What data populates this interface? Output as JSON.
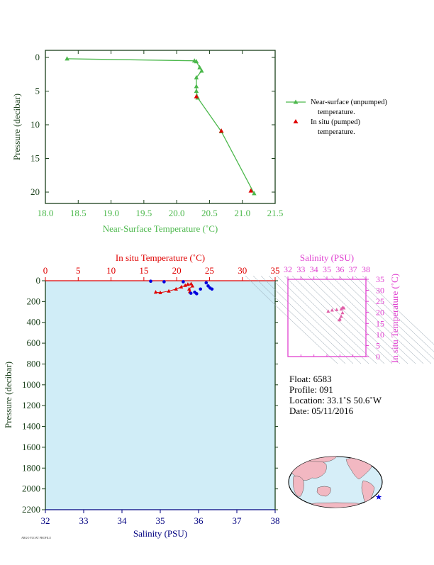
{
  "chart_data": [
    {
      "type": "line",
      "xlabel": "Near-Surface Temperature (˚C)",
      "ylabel": "Pressure (decibar)",
      "xlim": [
        18.0,
        21.5
      ],
      "ylim": [
        0,
        22
      ],
      "x_ticks": [
        "18.0",
        "18.5",
        "19.0",
        "19.5",
        "20.0",
        "20.5",
        "21.0",
        "21.5"
      ],
      "y_ticks": [
        "0",
        "5",
        "10",
        "15",
        "20"
      ],
      "legend_position": "right",
      "series": [
        {
          "name": "Near-surface (unpumped) temperature.",
          "color": "#4cb84c",
          "marker": "triangle",
          "points": [
            [
              18.33,
              0.2
            ],
            [
              20.27,
              0.5
            ],
            [
              20.3,
              0.6
            ],
            [
              20.35,
              1.5
            ],
            [
              20.38,
              2.0
            ],
            [
              20.3,
              3.0
            ],
            [
              20.3,
              4.3
            ],
            [
              20.3,
              5.0
            ],
            [
              20.32,
              6.0
            ],
            [
              20.68,
              11.0
            ],
            [
              21.18,
              20.2
            ]
          ]
        },
        {
          "name": "In situ (pumped) temperature.",
          "color": "#e00000",
          "marker": "triangle",
          "points": [
            [
              20.3,
              5.8
            ],
            [
              20.68,
              10.9
            ],
            [
              21.13,
              19.8
            ]
          ]
        }
      ]
    },
    {
      "type": "scatter",
      "title_top": "In situ Temperature (˚C)",
      "xlabel": "Salinity (PSU)",
      "ylabel": "Pressure (decibar)",
      "temp_lim": [
        0,
        35
      ],
      "temp_ticks": [
        "0",
        "5",
        "10",
        "15",
        "20",
        "25",
        "30",
        "35"
      ],
      "sal_lim": [
        32,
        38
      ],
      "sal_ticks": [
        "32",
        "33",
        "34",
        "35",
        "36",
        "37",
        "38"
      ],
      "ylim": [
        0,
        2200
      ],
      "y_ticks": [
        "0",
        "200",
        "400",
        "600",
        "800",
        "1000",
        "1200",
        "1400",
        "1600",
        "1800",
        "2000",
        "2200"
      ],
      "temperature_series": {
        "color": "#e00000",
        "points": [
          [
            16.8,
            110
          ],
          [
            17.5,
            115
          ],
          [
            18.8,
            100
          ],
          [
            19.9,
            80
          ],
          [
            20.7,
            60
          ],
          [
            21.3,
            45
          ],
          [
            21.7,
            35
          ],
          [
            22.2,
            30
          ],
          [
            22.4,
            50
          ],
          [
            21.9,
            80
          ],
          [
            22.0,
            105
          ]
        ]
      },
      "salinity_series": {
        "color": "#0000dd",
        "points": [
          [
            34.75,
            5
          ],
          [
            35.1,
            10
          ],
          [
            35.6,
            10
          ],
          [
            36.2,
            20
          ],
          [
            36.25,
            50
          ],
          [
            36.3,
            70
          ],
          [
            36.35,
            80
          ],
          [
            36.05,
            80
          ],
          [
            35.9,
            110
          ],
          [
            35.8,
            120
          ],
          [
            35.95,
            125
          ]
        ]
      }
    },
    {
      "type": "scatter",
      "title": "Salinity (PSU)",
      "xlabel": "Salinity (PSU)",
      "ylabel": "In situ Temperature (˚C)",
      "xlim": [
        32,
        38
      ],
      "x_ticks": [
        "32",
        "33",
        "34",
        "35",
        "36",
        "37",
        "38"
      ],
      "ylim": [
        0,
        35
      ],
      "y_ticks": [
        "0",
        "5",
        "10",
        "15",
        "20",
        "25",
        "30",
        "35"
      ],
      "series": [
        {
          "color": "#e060a8",
          "marker": "triangle",
          "points": [
            [
              35.1,
              20.5
            ],
            [
              35.4,
              21.0
            ],
            [
              35.75,
              21.2
            ],
            [
              36.2,
              22.2
            ],
            [
              36.3,
              22.0
            ],
            [
              36.1,
              21.5
            ],
            [
              36.2,
              19.8
            ],
            [
              36.1,
              18.2
            ],
            [
              36.0,
              17.0
            ],
            [
              35.95,
              16.6
            ]
          ]
        }
      ]
    }
  ],
  "info": {
    "float": "Float:  6583",
    "profile": "Profile:  091",
    "location": "Location:  33.1˚S  50.6˚W",
    "date": "Date:  05/11/2016"
  },
  "footer": "ARGO FLOAT PROFILE",
  "colors": {
    "green": "#4cb84c",
    "red": "#e00000",
    "blue": "#0000dd",
    "magenta": "#e040d0",
    "navy": "#000080",
    "panel_bg": "#d0edf7",
    "frame": "#1a3f1a",
    "land": "#f2b8c2"
  }
}
